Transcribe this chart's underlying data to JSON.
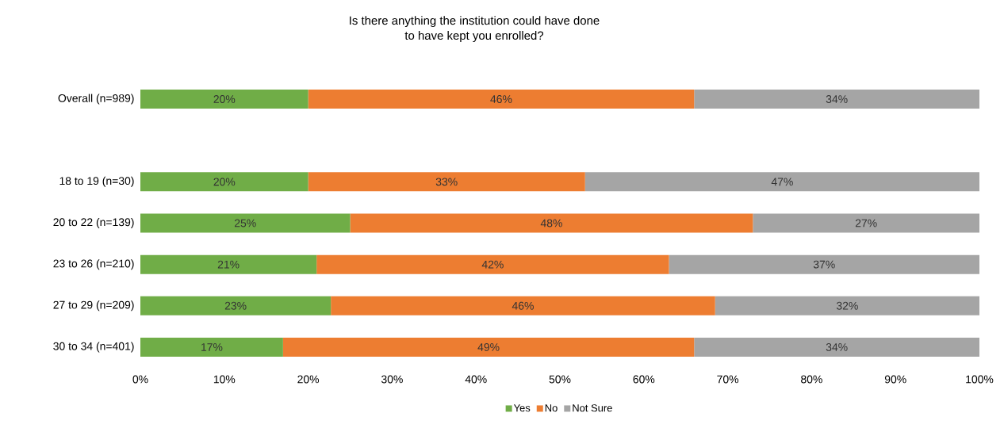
{
  "chart_data": {
    "type": "bar",
    "orientation": "horizontal",
    "stacked": true,
    "title": "Is there anything the institution could have done\nto have kept you enrolled?",
    "categories": [
      "Overall (n=989)",
      null,
      "18 to 19 (n=30)",
      "20 to 22 (n=139)",
      "23 to 26 (n=210)",
      "27 to 29 (n=209)",
      "30 to 34 (n=401)"
    ],
    "series": [
      {
        "name": "Yes",
        "color": "#70ad47",
        "values": [
          20,
          null,
          20,
          25,
          21,
          22.7,
          17
        ],
        "value_labels": [
          "20%",
          null,
          "20%",
          "25%",
          "21%",
          "23%",
          "17%"
        ]
      },
      {
        "name": "No",
        "color": "#ed7d31",
        "values": [
          46,
          null,
          33,
          48,
          42,
          45.8,
          49
        ],
        "value_labels": [
          "46%",
          null,
          "33%",
          "48%",
          "42%",
          "46%",
          "49%"
        ]
      },
      {
        "name": "Not Sure",
        "color": "#a5a5a5",
        "values": [
          34,
          null,
          47,
          27,
          37,
          31.5,
          34
        ],
        "value_labels": [
          "34%",
          null,
          "47%",
          "27%",
          "37%",
          "32%",
          "34%"
        ]
      }
    ],
    "xlim": [
      0,
      100
    ],
    "xticks": [
      {
        "value": 0,
        "label": "0%"
      },
      {
        "value": 10,
        "label": "10%"
      },
      {
        "value": 20,
        "label": "20%"
      },
      {
        "value": 30,
        "label": "30%"
      },
      {
        "value": 40,
        "label": "40%"
      },
      {
        "value": 50,
        "label": "50%"
      },
      {
        "value": 60,
        "label": "60%"
      },
      {
        "value": 70,
        "label": "70%"
      },
      {
        "value": 80,
        "label": "80%"
      },
      {
        "value": 90,
        "label": "90%"
      },
      {
        "value": 100,
        "label": "100%"
      }
    ],
    "legend": "bottom"
  }
}
